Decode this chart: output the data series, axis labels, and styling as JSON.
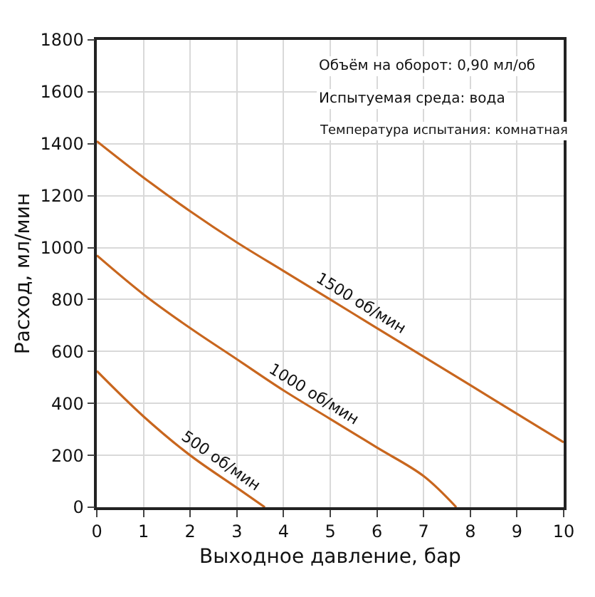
{
  "chart_data": {
    "type": "line",
    "xlabel": "Выходное давление, бар",
    "ylabel": "Расход, мл/мин",
    "xlim": [
      0,
      10
    ],
    "xticks": [
      0,
      1,
      2,
      3,
      4,
      5,
      6,
      7,
      8,
      9,
      10
    ],
    "ylim": [
      0,
      1800
    ],
    "yticks": [
      0,
      200,
      400,
      600,
      800,
      1000,
      1200,
      1400,
      1600,
      1800
    ],
    "grid": true,
    "legend": false,
    "marker": "none",
    "line_style": "solid",
    "annotations": [
      "Объём на оборот: 0,90 мл/об",
      "Испытуемая среда: вода",
      "Температура испытания: комнатная"
    ],
    "series": [
      {
        "name": "1500 об/мин",
        "color": "#c8661e",
        "x": [
          0,
          1,
          2,
          3,
          4,
          5,
          6,
          7,
          8,
          9,
          10
        ],
        "values": [
          1410,
          1270,
          1140,
          1020,
          910,
          800,
          690,
          580,
          470,
          360,
          250
        ]
      },
      {
        "name": "1000 об/мин",
        "color": "#c8661e",
        "x": [
          0,
          1,
          2,
          3,
          4,
          5,
          6,
          7,
          7.7
        ],
        "values": [
          970,
          820,
          690,
          570,
          450,
          340,
          230,
          120,
          0
        ]
      },
      {
        "name": "500 об/мин",
        "color": "#c8661e",
        "x": [
          0,
          1,
          2,
          3,
          3.6
        ],
        "values": [
          525,
          350,
          200,
          75,
          0
        ]
      }
    ]
  }
}
